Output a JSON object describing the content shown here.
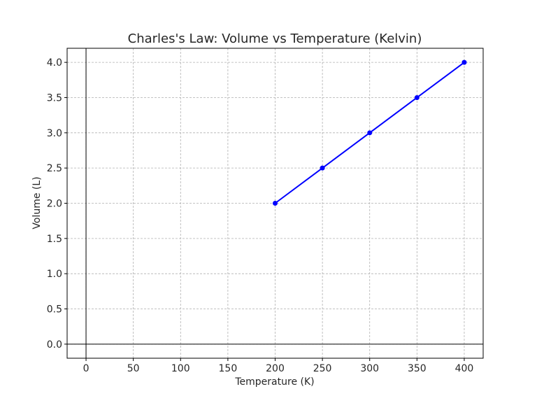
{
  "chart_data": {
    "type": "line",
    "title": "Charles's Law: Volume vs Temperature (Kelvin)",
    "xlabel": "Temperature (K)",
    "ylabel": "Volume (L)",
    "xlim": [
      -20,
      420
    ],
    "ylim": [
      -0.2,
      4.2
    ],
    "x_ticks": [
      0,
      50,
      100,
      150,
      200,
      250,
      300,
      350,
      400
    ],
    "x_tick_labels": [
      "0",
      "50",
      "100",
      "150",
      "200",
      "250",
      "300",
      "350",
      "400"
    ],
    "y_ticks": [
      0.0,
      0.5,
      1.0,
      1.5,
      2.0,
      2.5,
      3.0,
      3.5,
      4.0
    ],
    "y_tick_labels": [
      "0.0",
      "0.5",
      "1.0",
      "1.5",
      "2.0",
      "2.5",
      "3.0",
      "3.5",
      "4.0"
    ],
    "grid": true,
    "zero_lines": true,
    "series": [
      {
        "x": [
          200,
          250,
          300,
          350,
          400
        ],
        "y": [
          2.0,
          2.5,
          3.0,
          3.5,
          4.0
        ],
        "color": "#0000ff",
        "marker": "circle"
      }
    ]
  }
}
